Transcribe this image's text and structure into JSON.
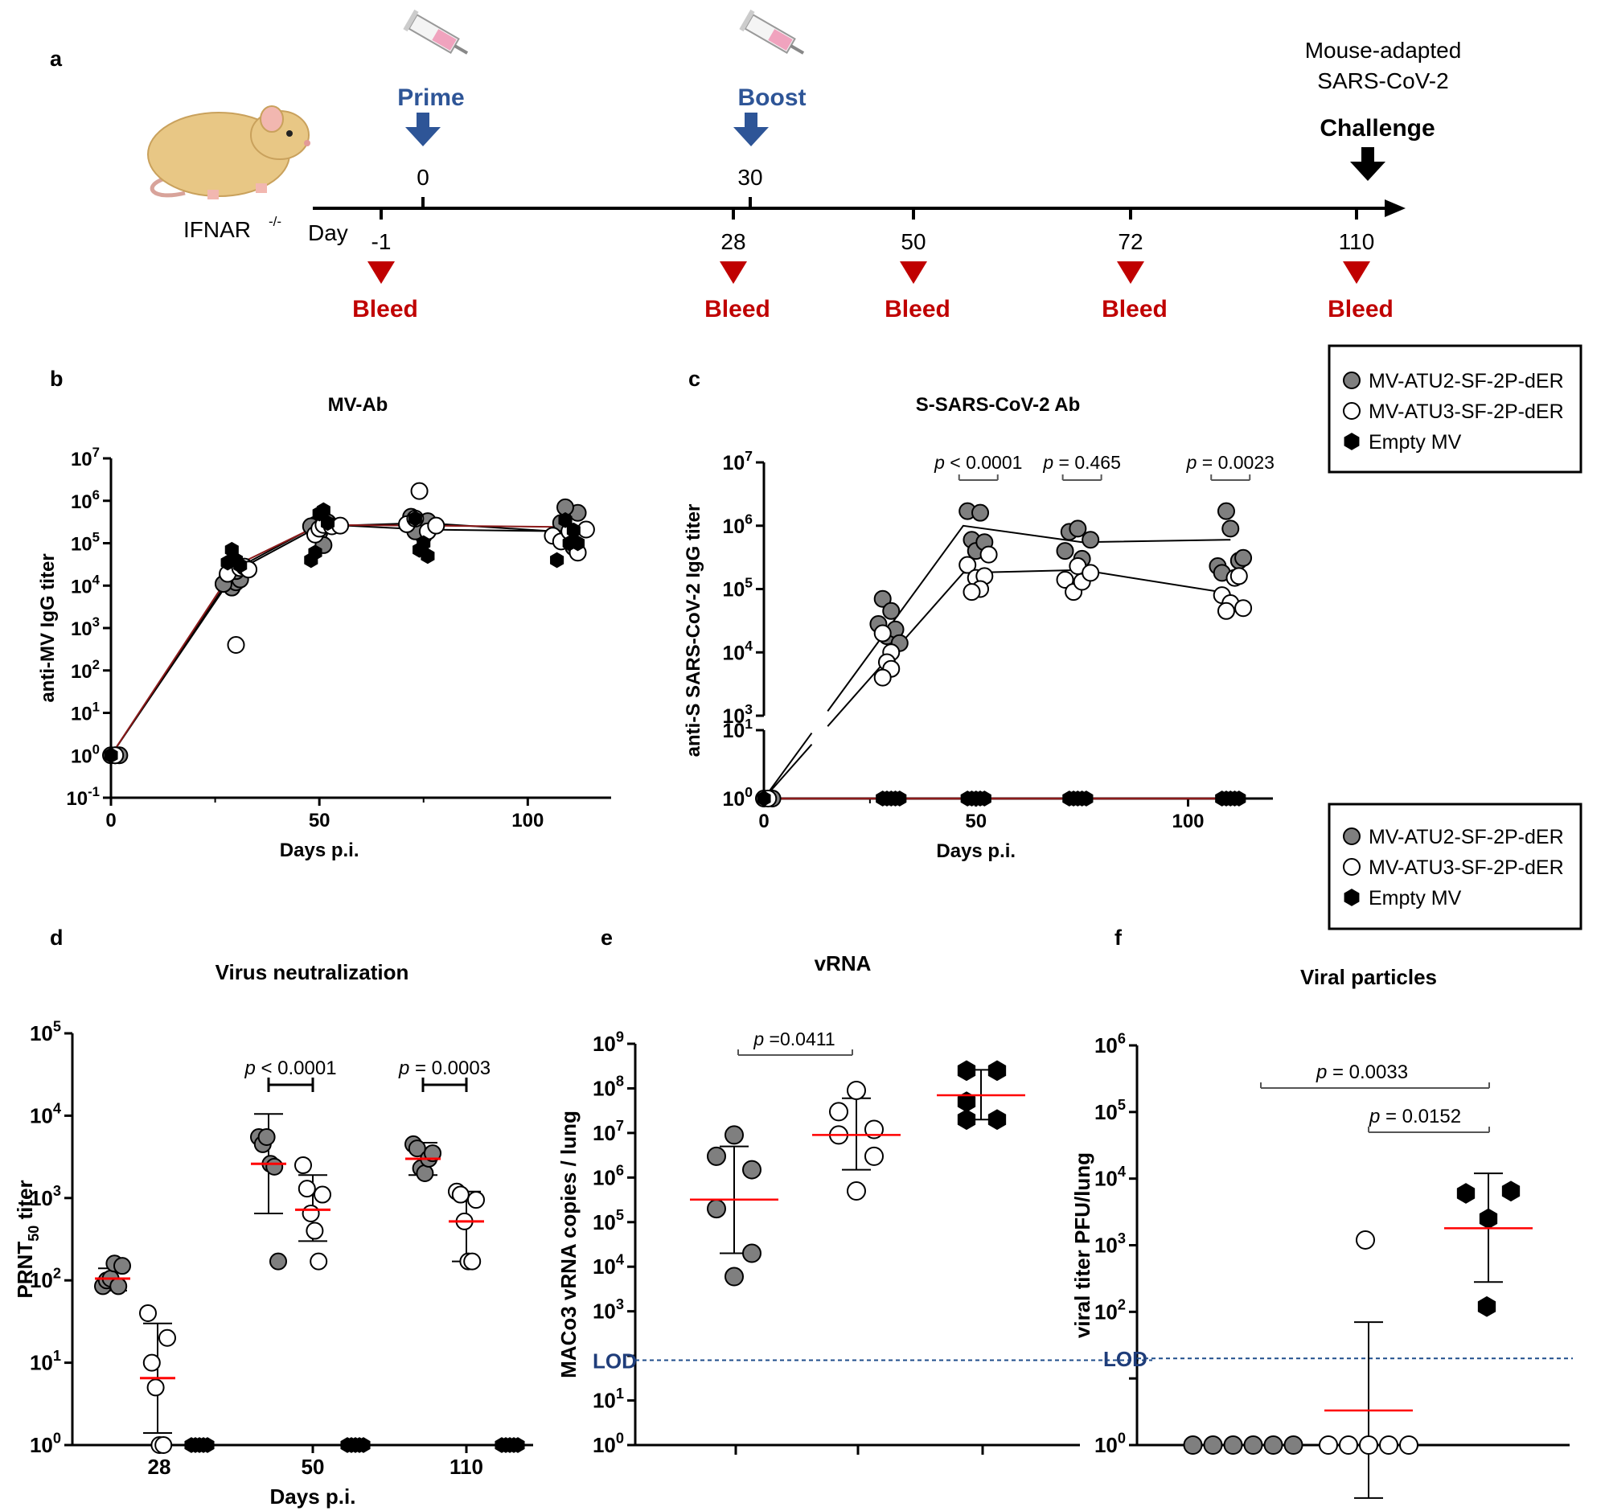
{
  "colors": {
    "gray_fill": "#7f7f7f",
    "open_fill": "#ffffff",
    "black_fill": "#000000",
    "mean_line": "#ff0000",
    "bleed": "#c00000",
    "prime_boost": "#2e5597",
    "lod": "#1f4e8c",
    "empty_line": "#8b1a1a"
  },
  "legend": {
    "items": [
      {
        "label": "MV-ATU2-SF-2P-dER",
        "marker": "gray-circle"
      },
      {
        "label": "MV-ATU3-SF-2P-dER",
        "marker": "open-circle"
      },
      {
        "label": "Empty MV",
        "marker": "black-hexagon"
      }
    ]
  },
  "panel_a": {
    "label": "a",
    "mouse_label": "IFNAR",
    "mouse_label_sup": "-/-",
    "day_label": "Day",
    "prime_label": "Prime",
    "boost_label": "Boost",
    "prime_day": "0",
    "boost_day": "30",
    "challenge_line1": "Mouse-adapted",
    "challenge_line2": "SARS-CoV-2",
    "challenge_label": "Challenge",
    "bleed_label": "Bleed",
    "bleed_days": [
      "-1",
      "28",
      "50",
      "72",
      "110"
    ]
  },
  "chart_data": [
    {
      "id": "b",
      "label": "b",
      "type": "scatter",
      "title": "MV-Ab",
      "xlabel": "Days p.i.",
      "ylabel": "anti-MV IgG titer",
      "xlim": [
        0,
        120
      ],
      "ylog_range": [
        -1,
        7
      ],
      "xticks": [
        "0",
        "50",
        "100"
      ],
      "series": [
        {
          "name": "MV-ATU2-SF-2P-dER",
          "marker": "gray",
          "mean_x": [
            0,
            30,
            50,
            75,
            110
          ],
          "mean_y": [
            1,
            25000,
            280000,
            210000,
            190000
          ],
          "points": [
            [
              0,
              1
            ],
            [
              1,
              1
            ],
            [
              2,
              1
            ],
            [
              28,
              17000
            ],
            [
              29,
              9000
            ],
            [
              30,
              12000
            ],
            [
              31,
              14000
            ],
            [
              27,
              11000
            ],
            [
              30,
              22000
            ],
            [
              49,
              270000
            ],
            [
              50,
              180000
            ],
            [
              51,
              90000
            ],
            [
              52,
              310000
            ],
            [
              48,
              250000
            ],
            [
              72,
              420000
            ],
            [
              74,
              260000
            ],
            [
              75,
              150000
            ],
            [
              76,
              330000
            ],
            [
              73,
              190000
            ],
            [
              108,
              300000
            ],
            [
              110,
              150000
            ],
            [
              111,
              80000
            ],
            [
              112,
              520000
            ],
            [
              109,
              700000
            ]
          ]
        },
        {
          "name": "MV-ATU3-SF-2P-dER",
          "marker": "open",
          "mean_x": [
            0,
            30,
            50,
            75,
            110
          ],
          "mean_y": [
            1,
            22000,
            250000,
            300000,
            180000
          ],
          "points": [
            [
              1,
              1
            ],
            [
              28,
              19000
            ],
            [
              30,
              400
            ],
            [
              31,
              26000
            ],
            [
              32,
              28000
            ],
            [
              33,
              24000
            ],
            [
              49,
              160000
            ],
            [
              50,
              220000
            ],
            [
              51,
              270000
            ],
            [
              53,
              250000
            ],
            [
              55,
              260000
            ],
            [
              71,
              280000
            ],
            [
              73,
              380000
            ],
            [
              74,
              1700000
            ],
            [
              76,
              190000
            ],
            [
              78,
              260000
            ],
            [
              106,
              150000
            ],
            [
              108,
              110000
            ],
            [
              110,
              190000
            ],
            [
              112,
              60000
            ],
            [
              114,
              210000
            ]
          ]
        },
        {
          "name": "Empty MV",
          "marker": "black",
          "mean_x": [
            0,
            30,
            50,
            75,
            110
          ],
          "mean_y": [
            1,
            30000,
            270000,
            260000,
            240000
          ],
          "points": [
            [
              0,
              1
            ],
            [
              29,
              70000
            ],
            [
              30,
              40000
            ],
            [
              28,
              35000
            ],
            [
              31,
              30000
            ],
            [
              48,
              40000
            ],
            [
              49,
              60000
            ],
            [
              51,
              600000
            ],
            [
              50,
              500000
            ],
            [
              52,
              300000
            ],
            [
              73,
              380000
            ],
            [
              75,
              100000
            ],
            [
              74,
              70000
            ],
            [
              76,
              50000
            ],
            [
              107,
              40000
            ],
            [
              109,
              350000
            ],
            [
              110,
              100000
            ],
            [
              111,
              200000
            ],
            [
              112,
              100000
            ]
          ]
        }
      ]
    },
    {
      "id": "c",
      "label": "c",
      "type": "scatter",
      "title": "S-SARS-CoV-2 Ab",
      "xlabel": "Days p.i.",
      "ylabel": "anti-S SARS-CoV-2 IgG titer",
      "xlim": [
        0,
        120
      ],
      "ylog_lower": [
        0,
        1
      ],
      "ylog_upper": [
        3,
        7
      ],
      "xticks": [
        "0",
        "50",
        "100"
      ],
      "pvalues": [
        {
          "x": 50,
          "text": "p < 0.0001"
        },
        {
          "x": 75,
          "text": "p = 0.465"
        },
        {
          "x": 110,
          "text": "p = 0.0023"
        }
      ],
      "series": [
        {
          "name": "MV-ATU2-SF-2P-dER",
          "marker": "gray",
          "mean_x": [
            0,
            47,
            75,
            110
          ],
          "mean_y": [
            1,
            1000000,
            550000,
            600000
          ],
          "points": [
            [
              0,
              1
            ],
            [
              2,
              1
            ],
            [
              28,
              70000
            ],
            [
              30,
              45000
            ],
            [
              27,
              28000
            ],
            [
              29,
              18000
            ],
            [
              31,
              23000
            ],
            [
              32,
              14000
            ],
            [
              48,
              1700000
            ],
            [
              51,
              1600000
            ],
            [
              49,
              600000
            ],
            [
              50,
              400000
            ],
            [
              52,
              550000
            ],
            [
              72,
              800000
            ],
            [
              74,
              900000
            ],
            [
              71,
              400000
            ],
            [
              75,
              300000
            ],
            [
              77,
              600000
            ],
            [
              107,
              230000
            ],
            [
              110,
              900000
            ],
            [
              109,
              1700000
            ],
            [
              112,
              280000
            ],
            [
              113,
              310000
            ],
            [
              108,
              180000
            ]
          ]
        },
        {
          "name": "MV-ATU3-SF-2P-dER",
          "marker": "open",
          "mean_x": [
            0,
            47,
            75,
            110
          ],
          "mean_y": [
            1,
            180000,
            200000,
            85000
          ],
          "points": [
            [
              1,
              1
            ],
            [
              28,
              20000
            ],
            [
              30,
              10000
            ],
            [
              29,
              7000
            ],
            [
              30,
              5500
            ],
            [
              28,
              4000
            ],
            [
              48,
              240000
            ],
            [
              50,
              150000
            ],
            [
              52,
              160000
            ],
            [
              51,
              100000
            ],
            [
              53,
              350000
            ],
            [
              49,
              90000
            ],
            [
              71,
              140000
            ],
            [
              73,
              90000
            ],
            [
              75,
              130000
            ],
            [
              74,
              230000
            ],
            [
              77,
              180000
            ],
            [
              108,
              80000
            ],
            [
              110,
              60000
            ],
            [
              111,
              150000
            ],
            [
              112,
              160000
            ],
            [
              109,
              45000
            ],
            [
              113,
              50000
            ]
          ]
        },
        {
          "name": "Empty MV",
          "marker": "black",
          "mean_x": [
            0,
            28,
            50,
            75,
            110
          ],
          "mean_y": [
            1,
            1,
            1,
            1,
            1
          ],
          "points": [
            [
              0,
              1
            ],
            [
              28,
              1
            ],
            [
              29,
              1
            ],
            [
              30,
              1
            ],
            [
              31,
              1
            ],
            [
              32,
              1
            ],
            [
              48,
              1
            ],
            [
              49,
              1
            ],
            [
              50,
              1
            ],
            [
              51,
              1
            ],
            [
              52,
              1
            ],
            [
              72,
              1
            ],
            [
              73,
              1
            ],
            [
              74,
              1
            ],
            [
              75,
              1
            ],
            [
              76,
              1
            ],
            [
              108,
              1
            ],
            [
              109,
              1
            ],
            [
              110,
              1
            ],
            [
              111,
              1
            ],
            [
              112,
              1
            ]
          ]
        }
      ]
    },
    {
      "id": "d",
      "label": "d",
      "type": "scatter",
      "title": "Virus neutralization",
      "xlabel": "Days p.i.",
      "ylabel": "PRNT",
      "ylabel_sub": "50",
      "ylabel_tail": " titer",
      "ylog_range": [
        0,
        5
      ],
      "categories": [
        "28",
        "50",
        "110"
      ],
      "pvalues": [
        {
          "group": 1,
          "text": "p < 0.0001"
        },
        {
          "group": 2,
          "text": "p = 0.0003"
        }
      ],
      "groups": [
        {
          "day": "28",
          "sets": [
            {
              "marker": "gray",
              "mean": 105,
              "sd_low": 75,
              "sd_high": 140,
              "values": [
                85,
                100,
                105,
                160,
                85,
                150
              ]
            },
            {
              "marker": "open",
              "mean": 6.5,
              "sd_low": 1.4,
              "sd_high": 30,
              "values": [
                40,
                10,
                5,
                1,
                1,
                20
              ]
            },
            {
              "marker": "black",
              "mean": 1,
              "values": [
                1,
                1,
                1,
                1,
                1
              ]
            }
          ]
        },
        {
          "day": "50",
          "sets": [
            {
              "marker": "gray",
              "mean": 2600,
              "sd_low": 650,
              "sd_high": 10500,
              "values": [
                5500,
                4500,
                5500,
                2600,
                2400,
                170
              ]
            },
            {
              "marker": "open",
              "mean": 720,
              "sd_low": 300,
              "sd_high": 1900,
              "values": [
                2500,
                1300,
                650,
                400,
                170,
                1100
              ]
            },
            {
              "marker": "black",
              "mean": 1,
              "values": [
                1,
                1,
                1,
                1,
                1
              ]
            }
          ]
        },
        {
          "day": "110",
          "sets": [
            {
              "marker": "gray",
              "mean": 3000,
              "sd_low": 1900,
              "sd_high": 4700,
              "values": [
                4500,
                4000,
                2300,
                2000,
                3000,
                3500
              ]
            },
            {
              "marker": "open",
              "mean": 520,
              "sd_low": 170,
              "sd_high": 1200,
              "values": [
                1200,
                1100,
                520,
                170,
                170,
                950
              ]
            },
            {
              "marker": "black",
              "mean": 1,
              "values": [
                1,
                1,
                1,
                1,
                1
              ]
            }
          ]
        }
      ]
    },
    {
      "id": "e",
      "label": "e",
      "type": "scatter",
      "title": "vRNA",
      "ylabel": "MACo3 vRNA copies / lung",
      "ylog_range": [
        0,
        9
      ],
      "lod_label": "LOD",
      "lod_value": 80,
      "pvalues": [
        {
          "from": 0,
          "to": 1,
          "text": "p =0.0411"
        }
      ],
      "groups": [
        {
          "marker": "gray",
          "mean": 320000,
          "sd_low": 20000,
          "sd_high": 5000000,
          "values": [
            9000000,
            3000000,
            1500000,
            200000,
            20000,
            6000
          ]
        },
        {
          "marker": "open",
          "mean": 9000000,
          "sd_low": 1500000,
          "sd_high": 60000000,
          "values": [
            90000000,
            30000000,
            12000000,
            9000000,
            3000000,
            500000
          ]
        },
        {
          "marker": "black",
          "mean": 70000000,
          "sd_low": 20000000,
          "sd_high": 260000000,
          "values": [
            250000000,
            250000000,
            50000000,
            20000000,
            20000000
          ]
        }
      ]
    },
    {
      "id": "f",
      "label": "f",
      "type": "scatter",
      "title": "Viral particles",
      "ylabel": "viral titer PFU/lung",
      "ylog_range": [
        0,
        6
      ],
      "lod_label": "LOD",
      "lod_value": 20,
      "pvalues": [
        {
          "from": 0,
          "to": 2,
          "text": "p = 0.0033"
        },
        {
          "from": 1,
          "to": 2,
          "text": "p = 0.0152"
        }
      ],
      "groups": [
        {
          "marker": "gray",
          "mean": null,
          "values": [
            1,
            1,
            1,
            1,
            1,
            1
          ]
        },
        {
          "marker": "open",
          "mean": 3.3,
          "sd_low": 0.16,
          "sd_high": 70,
          "values": [
            1200,
            1,
            1,
            1,
            1,
            1
          ]
        },
        {
          "marker": "black",
          "mean": 1800,
          "sd_low": 280,
          "sd_high": 12000,
          "values": [
            6000,
            6500,
            2500,
            120
          ]
        }
      ]
    }
  ]
}
